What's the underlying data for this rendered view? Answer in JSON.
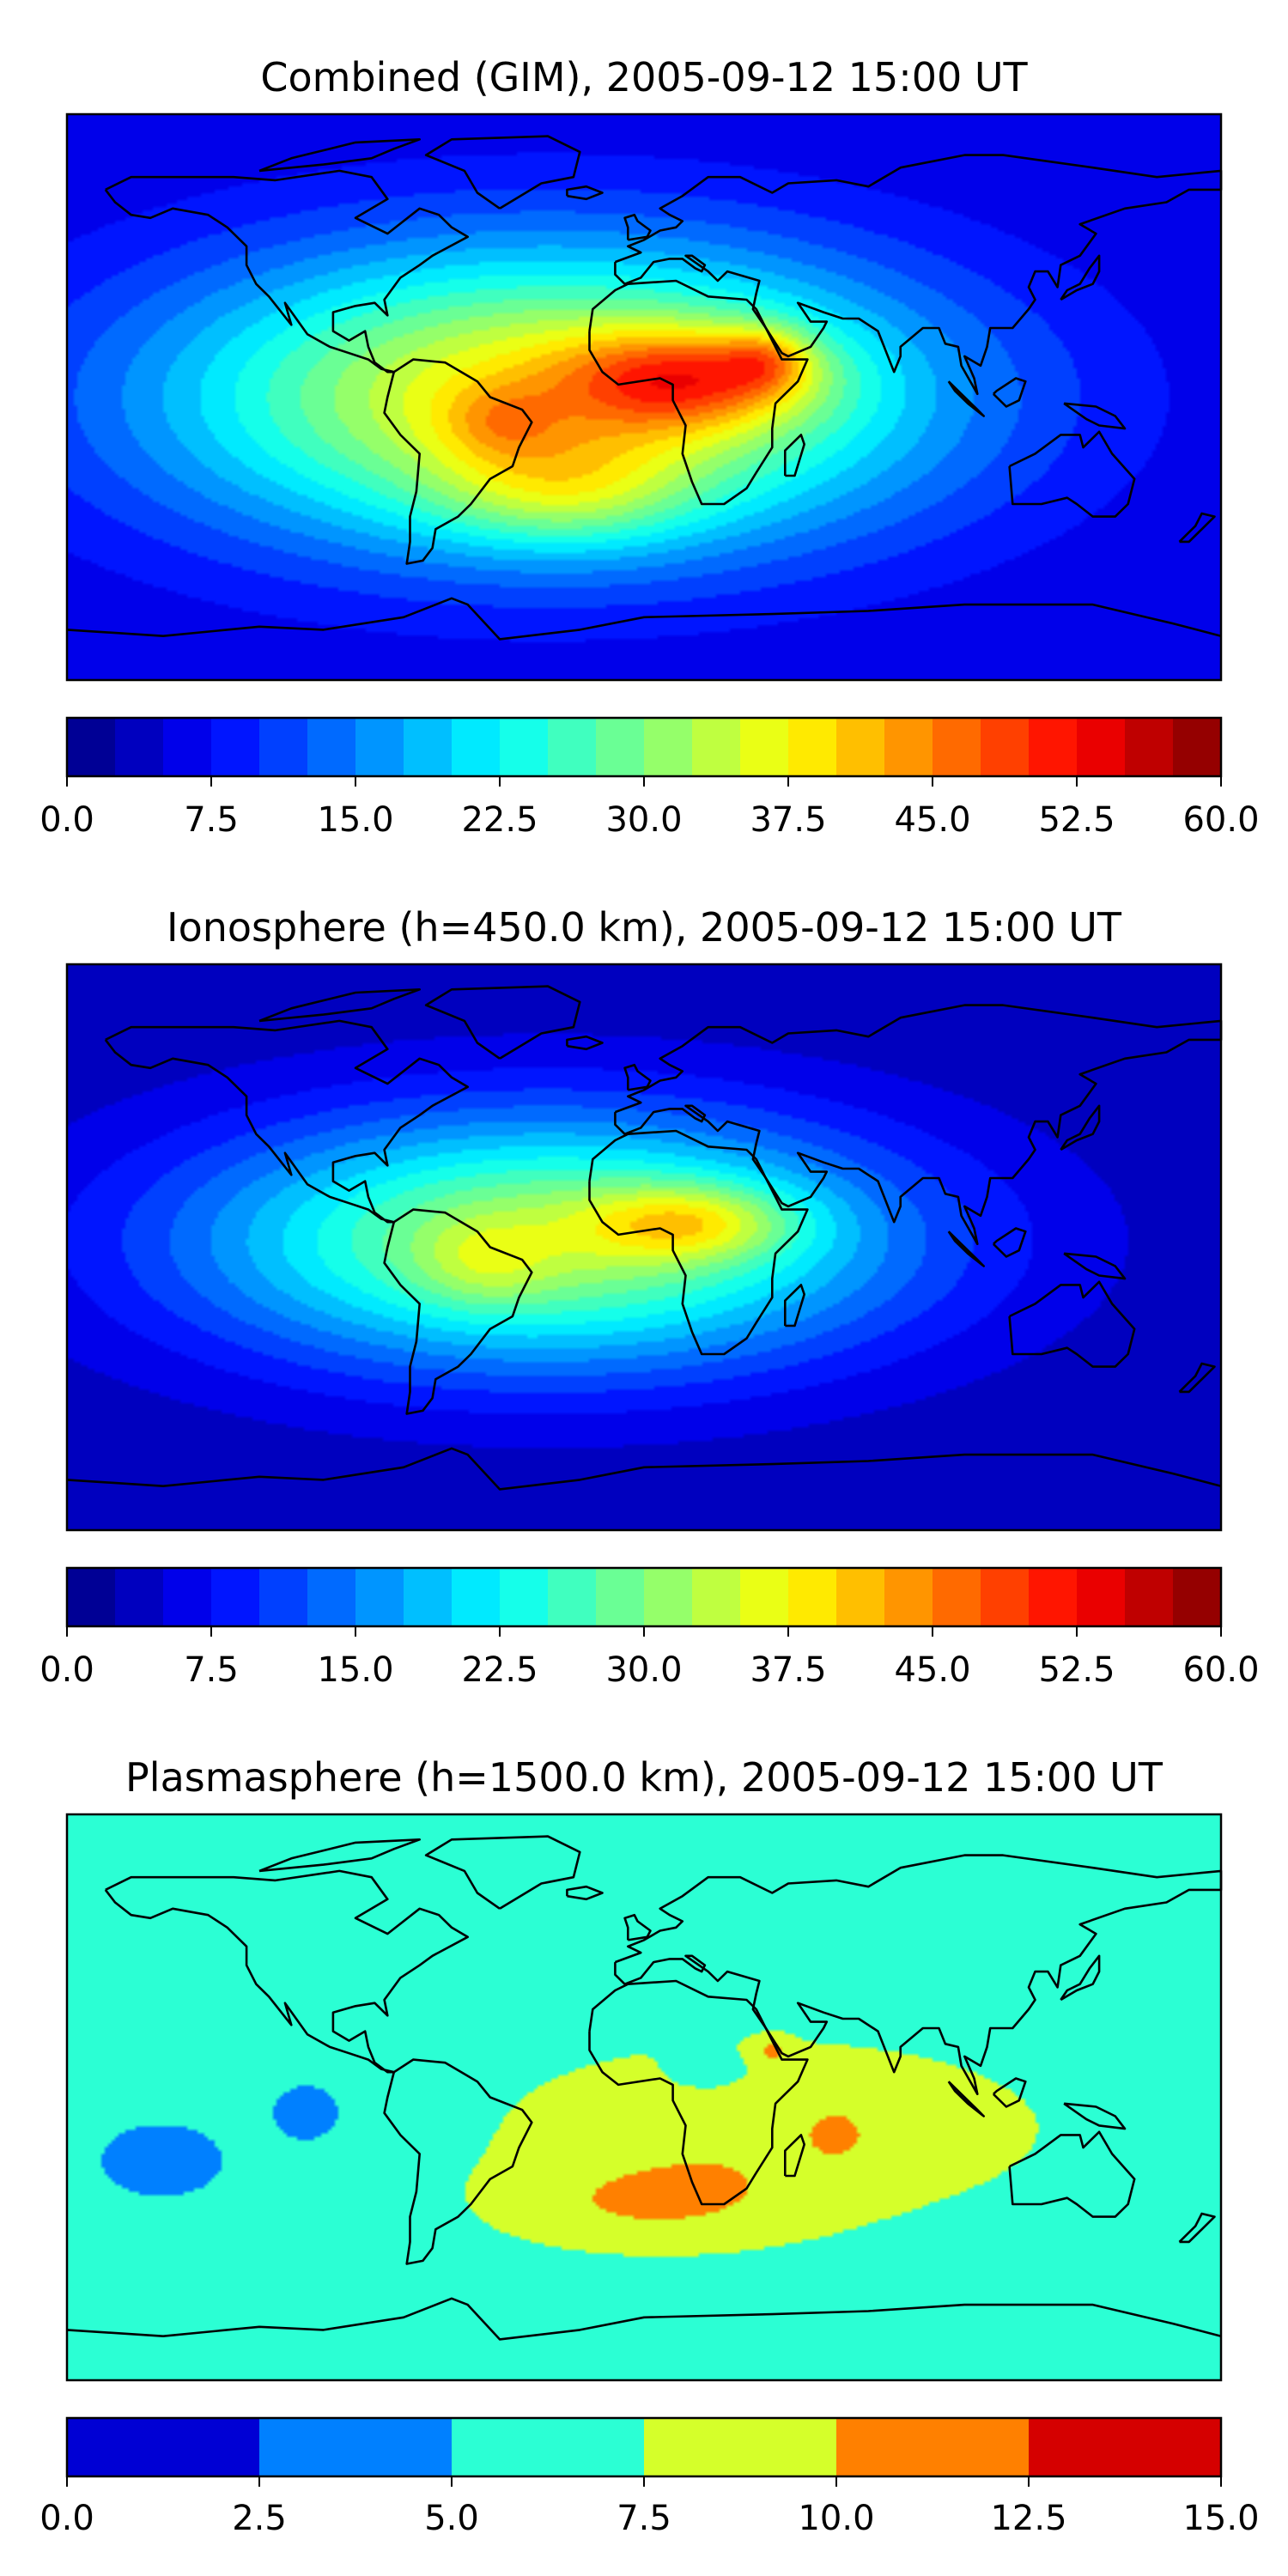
{
  "chart_data": [
    {
      "type": "heatmap",
      "title": "Combined (GIM), 2005-09-12 15:00 UT",
      "map": "world coastlines, equirectangular",
      "colormap": "jet",
      "colorbar": {
        "range": [
          0,
          60
        ],
        "levels": 24,
        "ticks": [
          "0.0",
          "7.5",
          "15.0",
          "22.5",
          "30.0",
          "37.5",
          "45.0",
          "52.5",
          "60.0"
        ]
      },
      "blobs": [
        {
          "lon": -30,
          "lat": 0,
          "value": 34,
          "spread_lon": 120,
          "spread_lat": 48
        },
        {
          "lon": 15,
          "lat": 6,
          "value": 18,
          "spread_lon": 38,
          "spread_lat": 16
        },
        {
          "lon": 38,
          "lat": 12,
          "value": 10,
          "spread_lon": 14,
          "spread_lat": 10
        },
        {
          "lon": -45,
          "lat": -8,
          "value": 6,
          "spread_lon": 18,
          "spread_lat": 12
        },
        {
          "lon": -25,
          "lat": -30,
          "value": 10,
          "spread_lon": 40,
          "spread_lat": 18
        }
      ],
      "background": 5
    },
    {
      "type": "heatmap",
      "title": "Ionosphere  (h=450.0 km), 2005-09-12 15:00 UT",
      "map": "world coastlines, equirectangular",
      "colormap": "jet",
      "colorbar": {
        "range": [
          0,
          60
        ],
        "levels": 24,
        "ticks": [
          "0.0",
          "7.5",
          "15.0",
          "22.5",
          "30.0",
          "37.5",
          "45.0",
          "52.5",
          "60.0"
        ]
      },
      "blobs": [
        {
          "lon": -30,
          "lat": 2,
          "value": 30,
          "spread_lon": 110,
          "spread_lat": 40
        },
        {
          "lon": 15,
          "lat": 8,
          "value": 13,
          "spread_lon": 32,
          "spread_lat": 12
        },
        {
          "lon": -50,
          "lat": -5,
          "value": 5,
          "spread_lon": 20,
          "spread_lat": 14
        }
      ],
      "background": 3
    },
    {
      "type": "heatmap",
      "title": "Plasmasphere (h=1500.0 km), 2005-09-12 15:00 UT",
      "map": "world coastlines, equirectangular",
      "colormap": "jet",
      "colorbar": {
        "range": [
          0,
          15
        ],
        "levels": 6,
        "ticks": [
          "0.0",
          "2.5",
          "5.0",
          "7.5",
          "10.0",
          "12.5",
          "15.0"
        ]
      },
      "blobs": [
        {
          "lon": 40,
          "lat": -10,
          "value": 3.5,
          "spread_lon": 90,
          "spread_lat": 30
        },
        {
          "lon": 0,
          "lat": -35,
          "value": 3,
          "spread_lon": 50,
          "spread_lat": 15
        },
        {
          "lon": 60,
          "lat": -12,
          "value": 3,
          "spread_lon": 6,
          "spread_lat": 5
        },
        {
          "lon": 40,
          "lat": 15,
          "value": 3,
          "spread_lon": 6,
          "spread_lat": 4
        },
        {
          "lon": -105,
          "lat": -5,
          "value": -2.5,
          "spread_lon": 12,
          "spread_lat": 10
        },
        {
          "lon": -150,
          "lat": -20,
          "value": -2.5,
          "spread_lon": 20,
          "spread_lat": 12
        },
        {
          "lon": 20,
          "lat": 8,
          "value": -2.5,
          "spread_lon": 12,
          "spread_lat": 6
        }
      ],
      "background": 6
    }
  ]
}
